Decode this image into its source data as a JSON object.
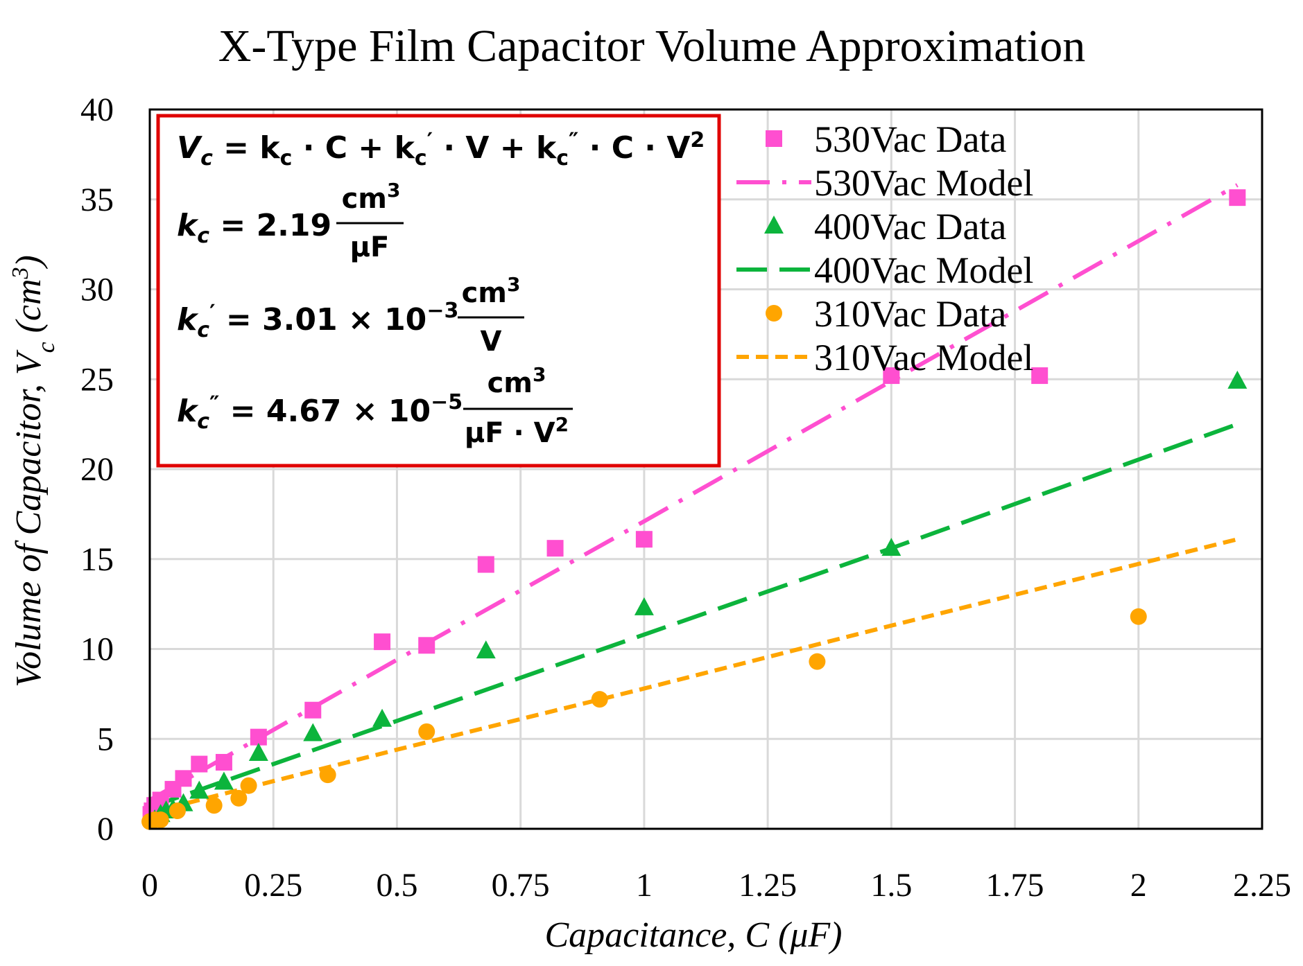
{
  "chart_data": {
    "type": "scatter",
    "title": "X-Type Film Capacitor Volume Approximation",
    "xlabel": {
      "main": "Capacitance, ",
      "var": "C",
      "unit": " (μF)"
    },
    "ylabel": {
      "main": "Volume of Capacitor, ",
      "var": "V",
      "sub": "c",
      "unit_open": " (cm",
      "unit_sup": "3",
      "unit_close": ")"
    },
    "xlim": [
      0,
      2.25
    ],
    "ylim": [
      0,
      40
    ],
    "grid": true,
    "x_ticks": [
      0,
      0.25,
      0.5,
      0.75,
      1,
      1.25,
      1.5,
      1.75,
      2,
      2.25
    ],
    "x_tick_labels": [
      "0",
      "0.25",
      "0.5",
      "0.75",
      "1",
      "1.25",
      "1.5",
      "1.75",
      "2",
      "2.25"
    ],
    "y_ticks": [
      0,
      5,
      10,
      15,
      20,
      25,
      30,
      35,
      40
    ],
    "y_tick_labels": [
      "0",
      "5",
      "10",
      "15",
      "20",
      "25",
      "30",
      "35",
      "40"
    ],
    "legend_position": "top-right",
    "series": [
      {
        "name": "530Vac Data",
        "kind": "data",
        "marker": "square",
        "color": "#FF4FD0",
        "x": [
          0.0022,
          0.0047,
          0.01,
          0.022,
          0.047,
          0.068,
          0.1,
          0.15,
          0.22,
          0.33,
          0.47,
          0.56,
          0.68,
          0.82,
          1.0,
          1.5,
          1.8,
          2.2
        ],
        "y": [
          0.8,
          1.0,
          1.3,
          1.6,
          2.2,
          2.8,
          3.6,
          3.7,
          5.1,
          6.6,
          10.4,
          10.2,
          14.7,
          15.6,
          16.1,
          25.2,
          25.2,
          35.1
        ]
      },
      {
        "name": "530Vac Model",
        "kind": "model",
        "voltage": 530,
        "dash": "dashdot",
        "color": "#FF4FD0",
        "x": [
          0,
          0.5,
          1.0,
          1.5,
          2.2
        ],
        "y": [
          1.6,
          9.4,
          17.1,
          24.9,
          35.8
        ]
      },
      {
        "name": "400Vac Data",
        "kind": "data",
        "marker": "triangle",
        "color": "#0CB43C",
        "x": [
          0.01,
          0.022,
          0.033,
          0.047,
          0.068,
          0.1,
          0.15,
          0.22,
          0.33,
          0.47,
          0.68,
          1.0,
          1.5,
          2.2
        ],
        "y": [
          0.5,
          0.8,
          1.0,
          1.1,
          1.4,
          2.1,
          2.6,
          4.2,
          5.3,
          6.1,
          9.9,
          12.3,
          15.6,
          24.9
        ]
      },
      {
        "name": "400Vac Model",
        "kind": "model",
        "voltage": 400,
        "dash": "longdash",
        "color": "#0CB43C",
        "x": [
          0,
          0.5,
          1.0,
          1.5,
          2.2
        ],
        "y": [
          1.2,
          6.0,
          10.8,
          15.6,
          22.5
        ]
      },
      {
        "name": "310Vac Data",
        "kind": "data",
        "marker": "circle",
        "color": "#FFA500",
        "x": [
          0.0,
          0.01,
          0.022,
          0.056,
          0.13,
          0.18,
          0.2,
          0.36,
          0.56,
          0.91,
          1.35,
          2.0
        ],
        "y": [
          0.4,
          0.5,
          0.5,
          1.0,
          1.3,
          1.7,
          2.4,
          3.0,
          5.4,
          7.2,
          9.3,
          11.8
        ]
      },
      {
        "name": "310Vac Model",
        "kind": "model",
        "voltage": 310,
        "dash": "shortdash",
        "color": "#FFA500",
        "x": [
          0,
          0.5,
          1.0,
          1.5,
          2.2
        ],
        "y": [
          0.9,
          4.4,
          7.8,
          11.3,
          16.1
        ]
      }
    ],
    "annotation": {
      "eq_main": {
        "lhs": "V",
        "lhs_sub": "c",
        "rhs_prefix": " = k",
        "t1_sub": "c",
        "t1": " · C + k",
        "t2_sub": "c",
        "t2_prime": "′",
        "t2": " · V + k",
        "t3_sub": "c",
        "t3_prime": "″",
        "t3": " · C · V",
        "t3_sup": "2"
      },
      "k1": {
        "name": "k",
        "sub": "c",
        "prime": "",
        "value": " = 2.19",
        "num": "cm",
        "num_sup": "3",
        "den": "μF",
        "den_sup": ""
      },
      "k2": {
        "name": "k",
        "sub": "c",
        "prime": "′",
        "value": " = 3.01 × 10",
        "exp": "−3",
        "num": "cm",
        "num_sup": "3",
        "den": "V",
        "den_sup": ""
      },
      "k3": {
        "name": "k",
        "sub": "c",
        "prime": "″",
        "value": " = 4.67 × 10",
        "exp": "−5",
        "num": "cm",
        "num_sup": "3",
        "den": "μF · V",
        "den_sup": "2"
      },
      "box_color": "#E00000"
    }
  }
}
